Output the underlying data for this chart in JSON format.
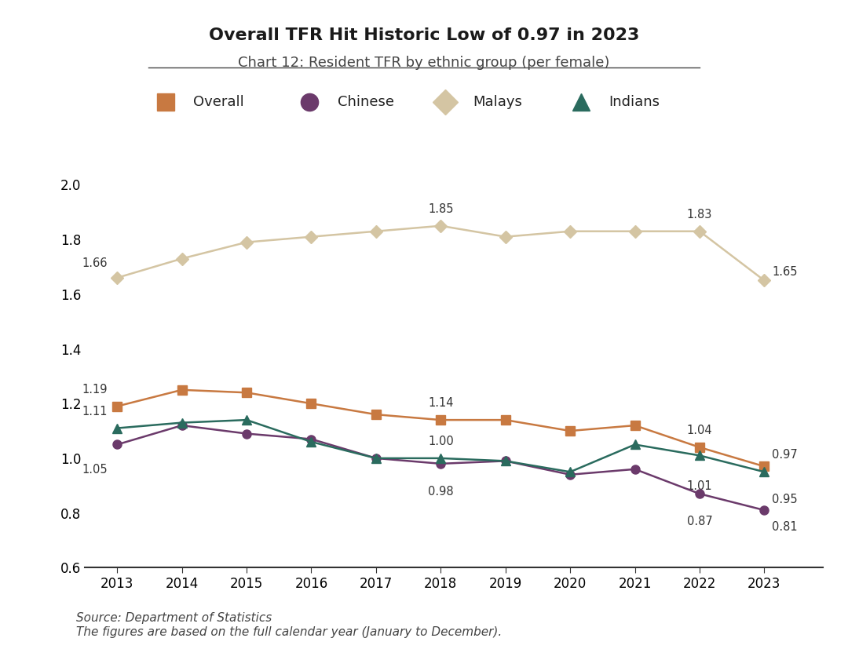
{
  "title": "Overall TFR Hit Historic Low of 0.97 in 2023",
  "subtitle": "Chart 12: Resident TFR by ethnic group (per female)",
  "years": [
    2013,
    2014,
    2015,
    2016,
    2017,
    2018,
    2019,
    2020,
    2021,
    2022,
    2023
  ],
  "overall": [
    1.19,
    1.25,
    1.24,
    1.2,
    1.16,
    1.14,
    1.14,
    1.1,
    1.12,
    1.04,
    0.97
  ],
  "chinese": [
    1.05,
    1.12,
    1.09,
    1.07,
    1.0,
    0.98,
    0.99,
    0.94,
    0.96,
    0.87,
    0.81
  ],
  "malays": [
    1.66,
    1.73,
    1.79,
    1.81,
    1.83,
    1.85,
    1.81,
    1.83,
    1.83,
    1.83,
    1.65
  ],
  "indians": [
    1.11,
    1.13,
    1.14,
    1.06,
    1.0,
    1.0,
    0.99,
    0.95,
    1.05,
    1.01,
    0.95
  ],
  "overall_color": "#C87941",
  "chinese_color": "#6B3A6B",
  "malays_color": "#D4C5A3",
  "indians_color": "#2A6B5E",
  "annotation_fontsize": 10.5,
  "ylim": [
    0.6,
    2.0
  ],
  "yticks": [
    0.6,
    0.8,
    1.0,
    1.2,
    1.4,
    1.6,
    1.8,
    2.0
  ],
  "source_line1": "Source: Department of Statistics",
  "source_line2": "The figures are based on the full calendar year (January to December).",
  "background_color": "#FFFFFF"
}
